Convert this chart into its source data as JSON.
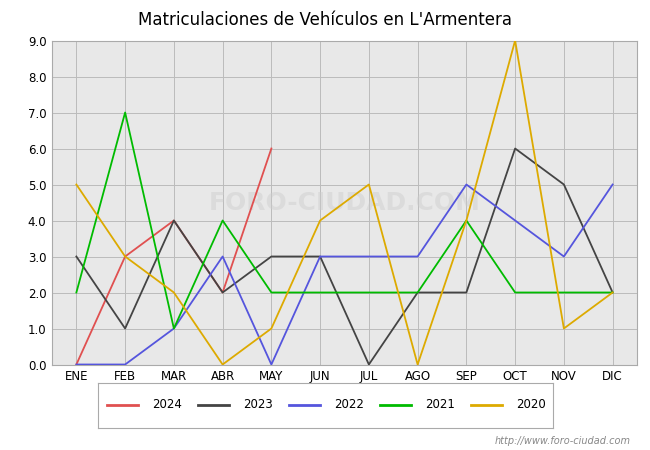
{
  "title": "Matriculaciones de Vehículos en L'Armentera",
  "months": [
    "ENE",
    "FEB",
    "MAR",
    "ABR",
    "MAY",
    "JUN",
    "JUL",
    "AGO",
    "SEP",
    "OCT",
    "NOV",
    "DIC"
  ],
  "series": {
    "2024": [
      0,
      3,
      4,
      2,
      6,
      null,
      null,
      null,
      null,
      null,
      null,
      null
    ],
    "2023": [
      3,
      1,
      4,
      2,
      3,
      3,
      0,
      2,
      2,
      6,
      5,
      2
    ],
    "2022": [
      0,
      0,
      1,
      3,
      0,
      3,
      3,
      3,
      5,
      4,
      3,
      5
    ],
    "2021": [
      2,
      7,
      1,
      4,
      2,
      2,
      2,
      2,
      4,
      2,
      2,
      2
    ],
    "2020": [
      5,
      3,
      2,
      0,
      1,
      4,
      5,
      0,
      4,
      9,
      1,
      2
    ]
  },
  "colors": {
    "2024": "#e05050",
    "2023": "#444444",
    "2022": "#5555dd",
    "2021": "#00bb00",
    "2020": "#ddaa00"
  },
  "ylim": [
    0.0,
    9.0
  ],
  "yticks": [
    0.0,
    1.0,
    2.0,
    3.0,
    4.0,
    5.0,
    6.0,
    7.0,
    8.0,
    9.0
  ],
  "title_bg_color": "#6aaad4",
  "grid_color": "#bbbbbb",
  "bg_color": "#e0e0e0",
  "plot_bg_color": "#e8e8e8",
  "watermark": "http://www.foro-ciudad.com",
  "watermark_text": "FORO-CIUDAD.COM",
  "legend_years": [
    "2024",
    "2023",
    "2022",
    "2021",
    "2020"
  ]
}
